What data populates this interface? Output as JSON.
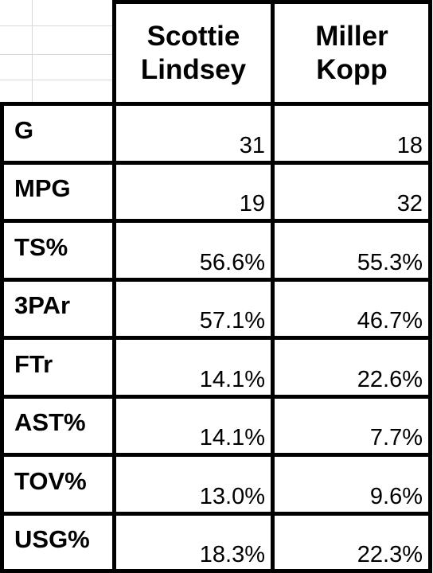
{
  "table": {
    "columns": [
      "Scottie Lindsey",
      "Miller Kopp"
    ],
    "rows": [
      [
        "G",
        "31",
        "18"
      ],
      [
        "MPG",
        "19",
        "32"
      ],
      [
        "TS%",
        "56.6%",
        "55.3%"
      ],
      [
        "3PAr",
        "57.1%",
        "46.7%"
      ],
      [
        "FTr",
        "14.1%",
        "22.6%"
      ],
      [
        "AST%",
        "14.1%",
        "7.7%"
      ],
      [
        "TOV%",
        "13.0%",
        "9.6%"
      ],
      [
        "USG%",
        "18.3%",
        "22.3%"
      ]
    ]
  }
}
